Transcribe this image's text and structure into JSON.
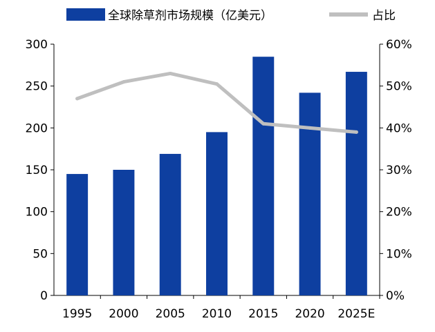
{
  "chart_data": {
    "type": "bar",
    "categories": [
      "1995",
      "2000",
      "2005",
      "2010",
      "2015",
      "2020",
      "2025E"
    ],
    "series": [
      {
        "name": "全球除草剂市场规模（亿美元）",
        "type": "bar",
        "axis": "left",
        "color": "#0e3fa0",
        "values": [
          145,
          150,
          169,
          195,
          285,
          242,
          267
        ]
      },
      {
        "name": "占比",
        "type": "line",
        "axis": "right",
        "color": "#bfbfbf",
        "values": [
          47,
          51,
          53,
          50.5,
          41,
          40,
          39
        ]
      }
    ],
    "y_left": {
      "ylim": [
        0,
        300
      ],
      "ticks": [
        "0",
        "50",
        "100",
        "150",
        "200",
        "250",
        "300"
      ]
    },
    "y_right": {
      "ylim": [
        0,
        60
      ],
      "ticks": [
        "0%",
        "10%",
        "20%",
        "30%",
        "40%",
        "50%",
        "60%"
      ]
    },
    "legend": {
      "placement": "top",
      "items": [
        "全球除草剂市场规模（亿美元）",
        "占比"
      ]
    },
    "grid": false
  }
}
